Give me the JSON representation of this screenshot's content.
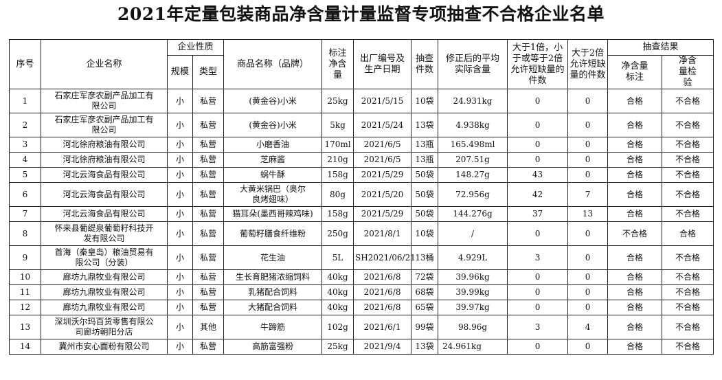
{
  "title": "2021年定量包装商品净含量计量监督专项抽查不合格企业名单",
  "headers": {
    "seq": "序号",
    "company": "企业名称",
    "nature": "企业性质",
    "scale": "规模",
    "type": "类型",
    "product": "商品名称（品牌）",
    "label_net": "标注净含量",
    "batch_date": "出厂编号及生产日期",
    "sample_count": "抽查件数",
    "corrected_avg": "修正后的平均实际含量",
    "gt1": "大于1倍，小于或等于2倍允许短缺量的件数",
    "gt2": "大于2倍允许短缺量的件数",
    "result": "抽查结果",
    "label_result": "净含量标注",
    "check_result": "净含量检验"
  },
  "rows": [
    {
      "seq": "1",
      "company": "石家庄军彦农副产品加工有限公司",
      "scale": "小",
      "type": "私营",
      "product": "(黄金谷)小米",
      "net": "25kg",
      "date": "2021/5/15",
      "count": "10袋",
      "avg": "24.931kg",
      "gt1": "0",
      "gt2": "0",
      "label": "合格",
      "check": "不合格"
    },
    {
      "seq": "2",
      "company": "石家庄军彦农副产品加工有限公司",
      "scale": "小",
      "type": "私营",
      "product": "(黄金谷)小米",
      "net": "5kg",
      "date": "2021/5/24",
      "count": "13袋",
      "avg": "4.938kg",
      "gt1": "0",
      "gt2": "0",
      "label": "合格",
      "check": "不合格"
    },
    {
      "seq": "3",
      "company": "河北徐府粮油有限公司",
      "scale": "小",
      "type": "私营",
      "product": "小磨香油",
      "net": "170ml",
      "date": "2021/6/5",
      "count": "13瓶",
      "avg": "165.498ml",
      "gt1": "0",
      "gt2": "0",
      "label": "合格",
      "check": "不合格"
    },
    {
      "seq": "4",
      "company": "河北徐府粮油有限公司",
      "scale": "小",
      "type": "私营",
      "product": "芝麻酱",
      "net": "210g",
      "date": "2021/6/5",
      "count": "13瓶",
      "avg": "207.51g",
      "gt1": "0",
      "gt2": "0",
      "label": "合格",
      "check": "不合格"
    },
    {
      "seq": "5",
      "company": "河北云海食品有限公司",
      "scale": "小",
      "type": "私营",
      "product": "蜗牛酥",
      "net": "158g",
      "date": "2021/5/29",
      "count": "50袋",
      "avg": "148.27g",
      "gt1": "43",
      "gt2": "0",
      "label": "合格",
      "check": "不合格"
    },
    {
      "seq": "6",
      "company": "河北云海食品有限公司",
      "scale": "小",
      "type": "私营",
      "product": "大黄米锅巴（奥尔良烤翅味）",
      "net": "80g",
      "date": "2021/5/20",
      "count": "50袋",
      "avg": "72.956g",
      "gt1": "42",
      "gt2": "7",
      "label": "合格",
      "check": "不合格"
    },
    {
      "seq": "7",
      "company": "河北云海食品有限公司",
      "scale": "小",
      "type": "私营",
      "product": "猫耳朵(墨西哥辣鸡味)",
      "net": "158g",
      "date": "2021/5/29",
      "count": "50袋",
      "avg": "144.276g",
      "gt1": "37",
      "gt2": "13",
      "label": "合格",
      "check": "不合格"
    },
    {
      "seq": "8",
      "company": "怀来县葡缇泉葡萄籽科技开发有限公司",
      "scale": "小",
      "type": "私营",
      "product": "葡萄籽膳食纤维粉",
      "net": "250g",
      "date": "2021/8/1",
      "count": "10袋",
      "avg": "/",
      "gt1": "0",
      "gt2": "0",
      "label": "不合格",
      "check": "合格"
    },
    {
      "seq": "9",
      "company": "首海（秦皇岛）粮油贸易有限公司（分装）",
      "scale": "小",
      "type": "私营",
      "product": "花生油",
      "net": "5L",
      "date": "SH2021/06/21",
      "count": "13桶",
      "avg": "4.929L",
      "gt1": "3",
      "gt2": "0",
      "label": "合格",
      "check": "不合格"
    },
    {
      "seq": "10",
      "company": "廊坊九鼎牧业有限公司",
      "scale": "小",
      "type": "私营",
      "product": "生长育肥猪浓缩饲料",
      "net": "40kg",
      "date": "2021/6/8",
      "count": "72袋",
      "avg": "39.96kg",
      "gt1": "0",
      "gt2": "0",
      "label": "合格",
      "check": "不合格"
    },
    {
      "seq": "11",
      "company": "廊坊九鼎牧业有限公司",
      "scale": "小",
      "type": "私营",
      "product": "乳猪配合饲料",
      "net": "40kg",
      "date": "2021/6/8",
      "count": "68袋",
      "avg": "39.99kg",
      "gt1": "0",
      "gt2": "0",
      "label": "合格",
      "check": "不合格"
    },
    {
      "seq": "12",
      "company": "廊坊九鼎牧业有限公司",
      "scale": "小",
      "type": "私营",
      "product": "大猪配合饲料",
      "net": "40kg",
      "date": "2021/6/8",
      "count": "65袋",
      "avg": "39.97kg",
      "gt1": "0",
      "gt2": "0",
      "label": "合格",
      "check": "不合格"
    },
    {
      "seq": "13",
      "company": "深圳沃尔玛百货零售有限公司廊坊朝阳分店",
      "scale": "小",
      "type": "其他",
      "product": "牛蹄筋",
      "net": "102g",
      "date": "2021/6/1",
      "count": "99袋",
      "avg": "98.96g",
      "gt1": "3",
      "gt2": "4",
      "label": "合格",
      "check": "不合格"
    },
    {
      "seq": "14",
      "company": "冀州市安心面粉有限公司",
      "scale": "小",
      "type": "私营",
      "product": "高筋富强粉",
      "net": "25kg",
      "date": "2021/9/4",
      "count": "13袋",
      "avg": "24.961kg",
      "gt1": "0",
      "gt2": "0",
      "label": "合格",
      "check": "不合格"
    }
  ]
}
